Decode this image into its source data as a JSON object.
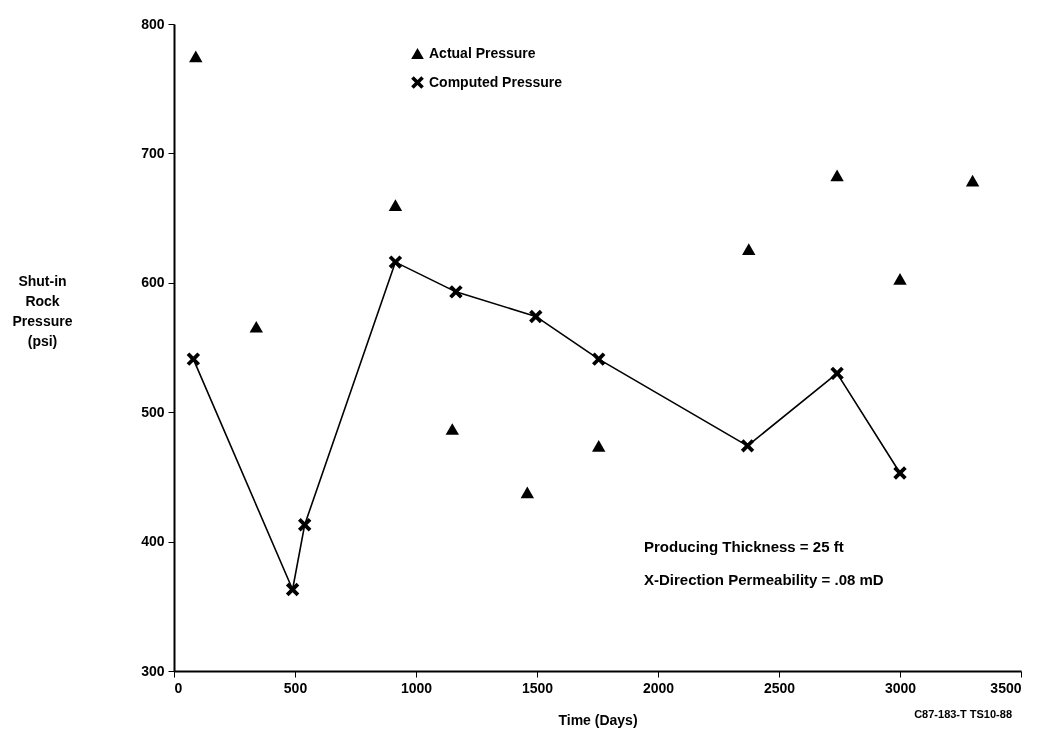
{
  "chart_data": {
    "type": "scatter",
    "xlabel": "Time (Days)",
    "ylabel": "Shut-in Rock Pressure (psi)",
    "xlim": [
      0,
      3500
    ],
    "xticks": [
      0,
      500,
      1000,
      1500,
      2000,
      2500,
      3000,
      3500
    ],
    "ylim": [
      300,
      800
    ],
    "yticks": [
      300,
      400,
      500,
      600,
      700,
      800
    ],
    "grid": false,
    "legend": "top",
    "series": [
      {
        "name": "Actual Pressure",
        "type": "scatter",
        "marker": "triangle",
        "color": "#000000",
        "x": [
          90,
          340,
          915,
          1150,
          1460,
          1755,
          2375,
          2740,
          3000,
          3300
        ],
        "values": [
          775,
          566,
          660,
          487,
          438,
          474,
          626,
          683,
          603,
          679
        ]
      },
      {
        "name": "Computed Pressure",
        "type": "line",
        "marker": "cross",
        "color": "#000000",
        "x": [
          80,
          490,
          540,
          915,
          1165,
          1495,
          1755,
          2370,
          2740,
          3000
        ],
        "values": [
          541,
          363,
          413,
          616,
          593,
          574,
          541,
          474,
          530,
          453
        ]
      }
    ],
    "annotations": [
      "Producing Thickness = 25 ft",
      "X-Direction Permeability = .08 mD",
      "C87-183-T  TS10-88"
    ]
  }
}
